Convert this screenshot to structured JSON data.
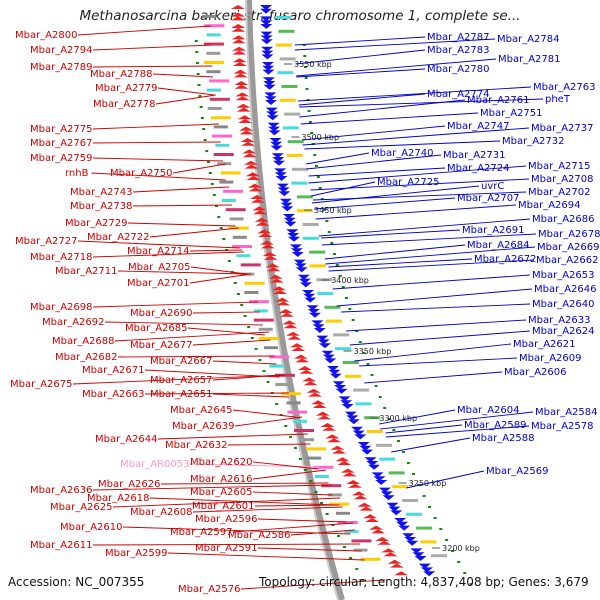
{
  "title": "Methanosarcina barkeri str. fusaro chromosome 1, complete se...",
  "footer": {
    "accession": "Accession: NC_007355",
    "topology": "Topology: circular; Length: 4,837,408 bp; Genes: 3,679"
  },
  "colors": {
    "left_label": "#cc0000",
    "right_label": "#0000cc",
    "rna_label": "#ff99cc",
    "forward_gene": "#ee2222",
    "reverse_gene": "#1111ee",
    "backbone": "#888888"
  },
  "kbp_ticks": [
    "3550 kbp",
    "3500 kbp",
    "3450 kbp",
    "3400 kbp",
    "3350 kbp",
    "3300 kbp",
    "3250 kbp",
    "3200 kbp"
  ],
  "left_labels": [
    {
      "text": "Mbar_A2800"
    },
    {
      "text": "Mbar_A2794"
    },
    {
      "text": "Mbar_A2789"
    },
    {
      "text": "Mbar_A2788"
    },
    {
      "text": "Mbar_A2779"
    },
    {
      "text": "Mbar_A2778"
    },
    {
      "text": "Mbar_A2775"
    },
    {
      "text": "Mbar_A2767"
    },
    {
      "text": "Mbar_A2759"
    },
    {
      "text": "rnhB"
    },
    {
      "text": "Mbar_A2750"
    },
    {
      "text": "Mbar_A2743"
    },
    {
      "text": "Mbar_A2738"
    },
    {
      "text": "Mbar_A2729"
    },
    {
      "text": "Mbar_A2727"
    },
    {
      "text": "Mbar_A2722"
    },
    {
      "text": "Mbar_A2718"
    },
    {
      "text": "Mbar_A2714"
    },
    {
      "text": "Mbar_A2711"
    },
    {
      "text": "Mbar_A2705"
    },
    {
      "text": "Mbar_A2701"
    },
    {
      "text": "Mbar_A2698"
    },
    {
      "text": "Mbar_A2690"
    },
    {
      "text": "Mbar_A2692"
    },
    {
      "text": "Mbar_A2685"
    },
    {
      "text": "Mbar_A2688"
    },
    {
      "text": "Mbar_A2677"
    },
    {
      "text": "Mbar_A2682"
    },
    {
      "text": "Mbar_A2667"
    },
    {
      "text": "Mbar_A2671"
    },
    {
      "text": "Mbar_A2675"
    },
    {
      "text": "Mbar_A2657"
    },
    {
      "text": "Mbar_A2663"
    },
    {
      "text": "Mbar_A2651"
    },
    {
      "text": "Mbar_A2645"
    },
    {
      "text": "Mbar_A2639"
    },
    {
      "text": "Mbar_A2644"
    },
    {
      "text": "Mbar_A2632"
    },
    {
      "text": "Mbar_AR0053"
    },
    {
      "text": "Mbar_A2620"
    },
    {
      "text": "Mbar_A2616"
    },
    {
      "text": "Mbar_A2636"
    },
    {
      "text": "Mbar_A2626"
    },
    {
      "text": "Mbar_A2605"
    },
    {
      "text": "Mbar_A2618"
    },
    {
      "text": "Mbar_A2625"
    },
    {
      "text": "Mbar_A2608"
    },
    {
      "text": "Mbar_A2601"
    },
    {
      "text": "Mbar_A2596"
    },
    {
      "text": "Mbar_A2610"
    },
    {
      "text": "Mbar_A2597"
    },
    {
      "text": "Mbar_A2586"
    },
    {
      "text": "Mbar_A2611"
    },
    {
      "text": "Mbar_A2591"
    },
    {
      "text": "Mbar_A2599"
    },
    {
      "text": "Mbar_A2576"
    }
  ],
  "right_labels": [
    {
      "text": "Mbar_A2787"
    },
    {
      "text": "Mbar_A2784"
    },
    {
      "text": "Mbar_A2783"
    },
    {
      "text": "Mbar_A2781"
    },
    {
      "text": "Mbar_A2780"
    },
    {
      "text": "Mbar_A2774"
    },
    {
      "text": "Mbar_A2763"
    },
    {
      "text": "Mbar_A2761"
    },
    {
      "text": "pheT"
    },
    {
      "text": "Mbar_A2751"
    },
    {
      "text": "Mbar_A2747"
    },
    {
      "text": "Mbar_A2737"
    },
    {
      "text": "Mbar_A2732"
    },
    {
      "text": "Mbar_A2740"
    },
    {
      "text": "Mbar_A2731"
    },
    {
      "text": "Mbar_A2715"
    },
    {
      "text": "Mbar_A2724"
    },
    {
      "text": "Mbar_A2708"
    },
    {
      "text": "Mbar_A2725"
    },
    {
      "text": "uvrC"
    },
    {
      "text": "Mbar_A2702"
    },
    {
      "text": "Mbar_A2707"
    },
    {
      "text": "Mbar_A2694"
    },
    {
      "text": "Mbar_A2686"
    },
    {
      "text": "Mbar_A2691"
    },
    {
      "text": "Mbar_A2678"
    },
    {
      "text": "Mbar_A2684"
    },
    {
      "text": "Mbar_A2669"
    },
    {
      "text": "Mbar_A2672"
    },
    {
      "text": "Mbar_A2662"
    },
    {
      "text": "Mbar_A2653"
    },
    {
      "text": "Mbar_A2646"
    },
    {
      "text": "Mbar_A2640"
    },
    {
      "text": "Mbar_A2633"
    },
    {
      "text": "Mbar_A2624"
    },
    {
      "text": "Mbar_A2621"
    },
    {
      "text": "Mbar_A2609"
    },
    {
      "text": "Mbar_A2606"
    },
    {
      "text": "Mbar_A2604"
    },
    {
      "text": "Mbar_A2584"
    },
    {
      "text": "Mbar_A2589"
    },
    {
      "text": "Mbar_A2578"
    },
    {
      "text": "Mbar_A2588"
    },
    {
      "text": "Mbar_A2569"
    }
  ]
}
